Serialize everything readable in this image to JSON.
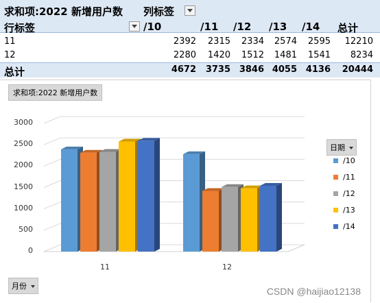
{
  "pivot": {
    "value_field": "求和项:2022 新增用户数",
    "column_labels": "列标签",
    "row_labels": "行标签",
    "columns": [
      "/10",
      "/11",
      "/12",
      "/13",
      "/14",
      "总计"
    ],
    "rows": [
      {
        "label": "11",
        "values": [
          "2392",
          "2315",
          "2334",
          "2574",
          "2595",
          "12210"
        ]
      },
      {
        "label": "12",
        "values": [
          "2280",
          "1420",
          "1512",
          "1481",
          "1541",
          "8234"
        ]
      }
    ],
    "total": {
      "label": "总计",
      "values": [
        "4672",
        "3735",
        "3846",
        "4055",
        "4136",
        "20444"
      ]
    }
  },
  "chart": {
    "value_button": "求和项:2022 新增用户数",
    "legend_button": "日期",
    "axis_button": "月份",
    "watermark": "CSDN @haijiao12138"
  },
  "chart_data": {
    "type": "bar",
    "categories": [
      "11",
      "12"
    ],
    "series": [
      {
        "name": "/10",
        "values": [
          2392,
          2280
        ],
        "color": "#5b9bd5"
      },
      {
        "name": "/11",
        "values": [
          2315,
          1420
        ],
        "color": "#ed7d31"
      },
      {
        "name": "/12",
        "values": [
          2334,
          1512
        ],
        "color": "#a5a5a5"
      },
      {
        "name": "/13",
        "values": [
          2574,
          1481
        ],
        "color": "#ffc000"
      },
      {
        "name": "/14",
        "values": [
          2595,
          1541
        ],
        "color": "#4472c4"
      }
    ],
    "yticks": [
      "0",
      "500",
      "1000",
      "1500",
      "2000",
      "2500",
      "3000"
    ],
    "ylim": [
      0,
      3000
    ],
    "grid": true,
    "legend_position": "right"
  }
}
